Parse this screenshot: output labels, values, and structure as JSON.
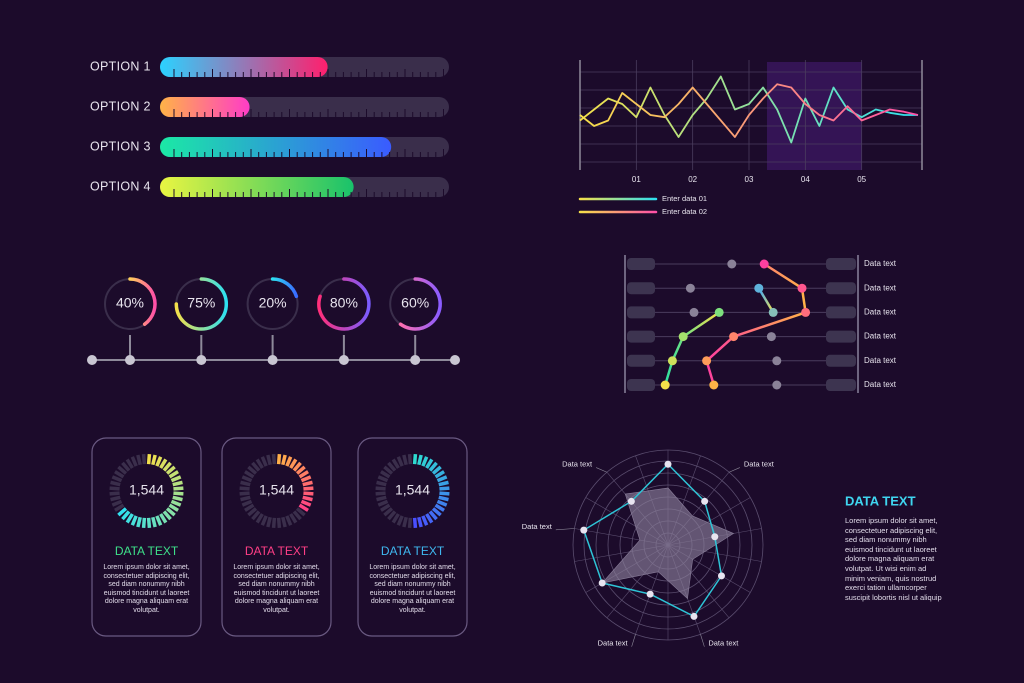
{
  "chart_data": [
    {
      "type": "progress",
      "categories": [
        "OPTION 1",
        "OPTION 2",
        "OPTION 3",
        "OPTION 4"
      ],
      "values": [
        58,
        31,
        80,
        67
      ],
      "xlim": [
        0,
        100
      ],
      "colors": [
        [
          "#2bd2ff",
          "#ff1f6d"
        ],
        [
          "#ffb347",
          "#ff3cc7"
        ],
        [
          "#1be9a5",
          "#3a5bff"
        ],
        [
          "#e9f542",
          "#19c26b"
        ]
      ]
    },
    {
      "type": "donut",
      "values": [
        40,
        75,
        20,
        80,
        60
      ],
      "value_labels": [
        "40%",
        "75%",
        "20%",
        "80%",
        "60%"
      ],
      "ylim": [
        0,
        100
      ],
      "colors": [
        [
          "#ffcf5a",
          "#ff4fa8"
        ],
        [
          "#f5e04a",
          "#2de0f0"
        ],
        [
          "#2de0f0",
          "#3a6bff"
        ],
        [
          "#ff2f7a",
          "#7a5cff"
        ],
        [
          "#ff6fb0",
          "#8a5cff"
        ]
      ]
    },
    {
      "type": "line",
      "x": [
        0,
        0.25,
        0.5,
        0.75,
        1,
        1.25,
        1.5,
        1.75,
        2,
        2.25,
        2.5,
        2.75,
        3,
        3.25,
        3.5,
        3.75,
        4,
        4.25,
        4.5,
        4.75,
        5,
        5.25,
        5.5,
        5.75,
        6
      ],
      "series": [
        {
          "name": "Enter data 01",
          "colors": [
            "#f5e04a",
            "#2de0f0"
          ],
          "values": [
            4.5,
            5.5,
            6.5,
            6,
            4.8,
            7.5,
            5,
            3,
            5,
            6.5,
            8.5,
            5.5,
            6,
            7.5,
            5.5,
            2.5,
            6.5,
            4,
            7.5,
            5.5,
            4.8,
            5.5,
            5.2,
            5,
            5
          ]
        },
        {
          "name": "Enter data 02",
          "colors": [
            "#f5e04a",
            "#ff4fa8"
          ],
          "values": [
            5,
            4,
            4.5,
            7,
            6,
            5,
            4.8,
            6,
            7.5,
            6,
            4.5,
            3,
            5,
            6.5,
            7.8,
            7.5,
            6,
            5,
            4.5,
            5.8,
            4.5,
            5,
            5.5,
            5.3,
            5
          ]
        }
      ],
      "xlim": [
        0,
        6
      ],
      "ylim": [
        0,
        10
      ],
      "xticks": [
        {
          "value": 1,
          "label": "01"
        },
        {
          "value": 2,
          "label": "02"
        },
        {
          "value": 3,
          "label": "03"
        },
        {
          "value": 4,
          "label": "04"
        },
        {
          "value": 5,
          "label": "05"
        }
      ],
      "grid": true
    },
    {
      "type": "dot",
      "categories": [
        "Data text",
        "Data text",
        "Data text",
        "Data text",
        "Data text",
        "Data text"
      ],
      "xlim": [
        0,
        10
      ],
      "series": [
        {
          "colors": [
            "#2de0a0",
            "#f5e04a"
          ],
          "connect": true,
          "values": [
            null,
            null,
            4.4,
            2.4,
            1.8,
            1.4
          ]
        },
        {
          "colors": [
            "#ff3fa0",
            "#ffb347"
          ],
          "connect": true,
          "values": [
            6.9,
            9,
            9.2,
            5.2,
            3.7,
            4.1
          ]
        },
        {
          "colors": [
            "#3aa8ff",
            "#f5e04a"
          ],
          "connect": true,
          "values": [
            null,
            6.6,
            7.4,
            null,
            null,
            null
          ]
        },
        {
          "colors": [
            "#8a8298",
            "#8a8298"
          ],
          "connect": false,
          "values": [
            5.1,
            2.8,
            3.0,
            7.3,
            7.6,
            7.6
          ]
        }
      ]
    },
    {
      "type": "gauge",
      "values": [
        1544,
        1544,
        1544
      ],
      "value_labels": [
        "1,544",
        "1,544",
        "1,544"
      ],
      "fill": [
        65,
        35,
        50
      ],
      "filllim": [
        0,
        100
      ],
      "titles": [
        "DATA TEXT",
        "DATA TEXT",
        "DATA TEXT"
      ],
      "title_colors": [
        "#3ee08a",
        "#ff3f86",
        "#3fb8f0"
      ],
      "ring_colors": [
        [
          "#f5e04a",
          "#2de0f0"
        ],
        [
          "#ffb347",
          "#ff3f86"
        ],
        [
          "#2de0d0",
          "#4a4bff"
        ]
      ],
      "texts": [
        "Lorem ipsum dolor sit amet, consectetuer adipiscing elit, sed diam nonummy nibh euismod tincidunt ut laoreet dolore magna aliquam erat volutpat.",
        "Lorem ipsum dolor sit amet, consectetuer adipiscing elit, sed diam nonummy nibh euismod tincidunt ut laoreet dolore magna aliquam erat volutpat.",
        "Lorem ipsum dolor sit amet, consectetuer adipiscing elit, sed diam nonummy nibh euismod tincidunt ut laoreet dolore magna aliquam erat volutpat."
      ]
    },
    {
      "type": "radar",
      "categories": [
        null,
        "Data text",
        null,
        null,
        "Data text",
        "Data text",
        null,
        "Data text",
        "Data text"
      ],
      "rlim": [
        0,
        10
      ],
      "series": [
        {
          "color": "#8a7e9a",
          "fill": true,
          "values": [
            6,
            4,
            7,
            3,
            6,
            3,
            8,
            3,
            7
          ]
        },
        {
          "color": "#2ec4d6",
          "fill": false,
          "values": [
            8.5,
            6,
            5,
            6.5,
            8,
            5.5,
            8,
            9,
            6
          ]
        }
      ],
      "title": "DATA TEXT",
      "text": "Lorem ipsum dolor sit amet, consectetuer adipiscing elit, sed diam nonummy nibh euismod tincidunt ut laoreet dolore magna aliquam erat volutpat. Ut wisi enim ad minim veniam, quis nostrud exerci tation ullamcorper suscipit lobortis nisl ut aliquip"
    }
  ]
}
